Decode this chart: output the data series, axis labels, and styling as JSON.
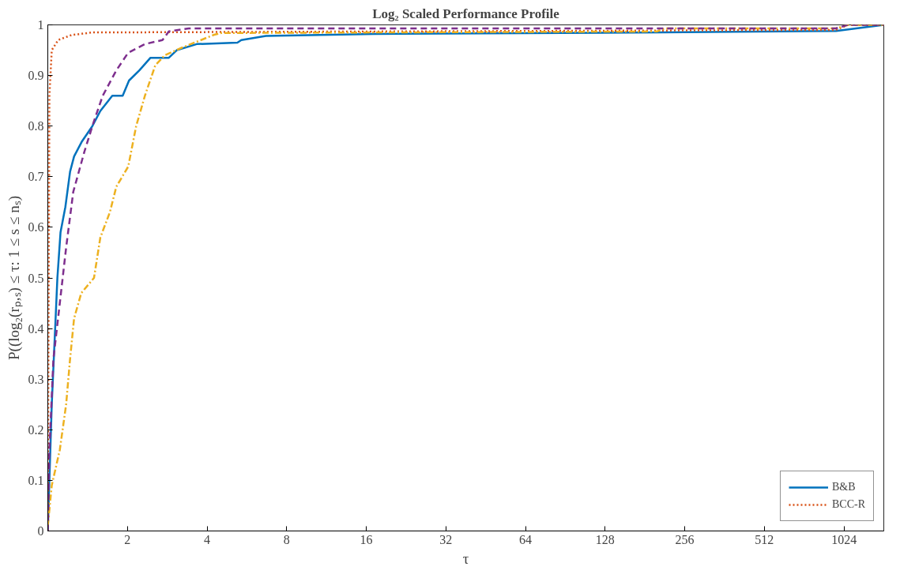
{
  "chart_data": {
    "type": "line",
    "title": "Log₂ Scaled Performance Profile",
    "xlabel": "τ",
    "ylabel": "P((log₂(rₚ,ₛ) ≤ τ: 1 ≤ s ≤ nₛ)",
    "log": "x",
    "xlim": [
      1,
      1448
    ],
    "ylim": [
      0,
      1
    ],
    "xticks": [
      2,
      4,
      8,
      16,
      32,
      64,
      128,
      256,
      512,
      1024
    ],
    "yticks": [
      0,
      0.1,
      0.2,
      0.3,
      0.4,
      0.5,
      0.6,
      0.7,
      0.8,
      0.9,
      1
    ],
    "grid": false,
    "legend": "bottom right",
    "marker": "none",
    "series": [
      {
        "name": "B&B",
        "color": "#0072bd",
        "line_style": "solid",
        "x": [
          1,
          1.035,
          1.064,
          1.087,
          1.117,
          1.165,
          1.214,
          1.257,
          1.347,
          1.474,
          1.58,
          1.693,
          1.753,
          1.919,
          2.028,
          2.219,
          2.445,
          2.868,
          3.073,
          3.655,
          5.21,
          5.39,
          6.68,
          17.1,
          208,
          955,
          1448
        ],
        "values": [
          0,
          0.25,
          0.39,
          0.5,
          0.59,
          0.64,
          0.71,
          0.74,
          0.77,
          0.8,
          0.83,
          0.85,
          0.86,
          0.86,
          0.89,
          0.91,
          0.935,
          0.935,
          0.95,
          0.962,
          0.965,
          0.97,
          0.978,
          0.982,
          0.985,
          0.988,
          1
        ]
      },
      {
        "name": "BCC-R",
        "color": "#d95319",
        "line_style": "dotted",
        "x": [
          1,
          1.007,
          1.014,
          1.035,
          1.094,
          1.231,
          1.474,
          955,
          1060,
          1448
        ],
        "values": [
          0,
          0.42,
          0.86,
          0.95,
          0.97,
          0.98,
          0.985,
          0.99,
          1,
          1
        ]
      },
      {
        "color": "#edb120",
        "line_style": "dashdot",
        "x": [
          1,
          1.035,
          1.11,
          1.173,
          1.214,
          1.257,
          1.338,
          1.495,
          1.58,
          1.717,
          1.815,
          2.014,
          2.158,
          2.329,
          2.549,
          2.77,
          3.182,
          4.23,
          4.53,
          201,
          215,
          955,
          1060,
          1448
        ],
        "values": [
          0.01,
          0.09,
          0.16,
          0.25,
          0.34,
          0.42,
          0.47,
          0.5,
          0.58,
          0.63,
          0.68,
          0.72,
          0.8,
          0.86,
          0.92,
          0.94,
          0.954,
          0.98,
          0.984,
          0.987,
          0.993,
          0.993,
          1,
          1
        ]
      },
      {
        "color": "#7e2f8e",
        "line_style": "dashed",
        "x": [
          1,
          1.014,
          1.05,
          1.11,
          1.173,
          1.248,
          1.376,
          1.495,
          1.613,
          1.815,
          2.014,
          2.329,
          2.713,
          2.868,
          3.411,
          955,
          1060,
          1448
        ],
        "values": [
          0,
          0.16,
          0.34,
          0.45,
          0.56,
          0.67,
          0.75,
          0.81,
          0.86,
          0.91,
          0.945,
          0.962,
          0.97,
          0.987,
          0.993,
          0.993,
          1,
          1
        ]
      }
    ]
  }
}
